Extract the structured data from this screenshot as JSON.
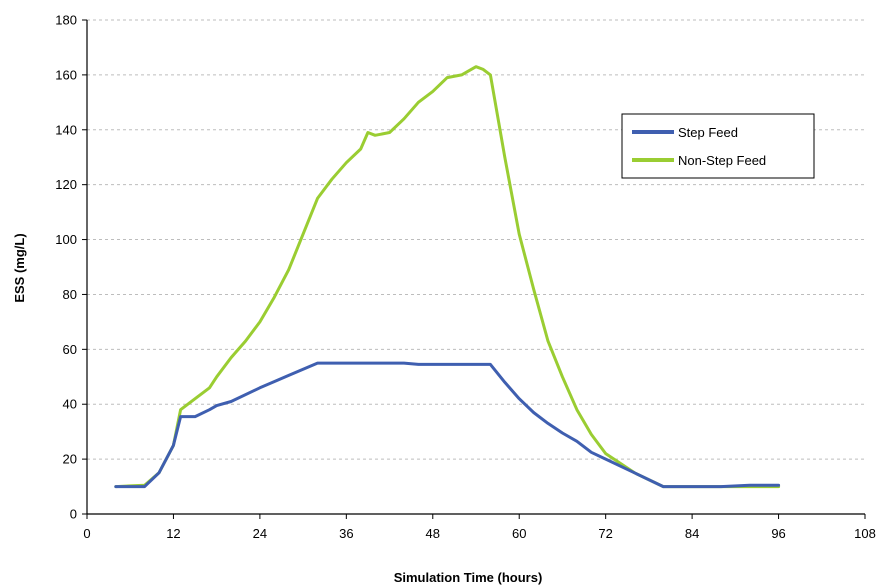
{
  "chart_data": {
    "type": "line",
    "title": "",
    "xlabel": "Simulation Time (hours)",
    "ylabel": "ESS (mg/L)",
    "xlim": [
      0,
      108
    ],
    "ylim": [
      0,
      180
    ],
    "xticks": [
      0,
      12,
      24,
      36,
      48,
      60,
      72,
      84,
      96,
      108
    ],
    "yticks": [
      0,
      20,
      40,
      60,
      80,
      100,
      120,
      140,
      160,
      180
    ],
    "grid": "horizontal-dashed",
    "legend_position": "top-right",
    "series": [
      {
        "name": "Step Feed",
        "color": "#3F5FB0",
        "x": [
          4,
          8,
          10,
          12,
          13,
          15,
          17,
          18,
          20,
          24,
          28,
          32,
          36,
          40,
          44,
          46,
          48,
          52,
          56,
          58,
          60,
          62,
          64,
          66,
          68,
          70,
          72,
          76,
          80,
          84,
          88,
          92,
          96
        ],
        "y": [
          10,
          10,
          15,
          25,
          35.5,
          35.5,
          38,
          39.5,
          41,
          46,
          50.5,
          55,
          55,
          55,
          55,
          54.5,
          54.5,
          54.5,
          54.5,
          48,
          42,
          37,
          33,
          29.5,
          26.5,
          22.5,
          20,
          15,
          10,
          10,
          10,
          10.5,
          10.5
        ]
      },
      {
        "name": "Non-Step Feed",
        "color": "#9ACD32",
        "x": [
          4,
          8,
          10,
          12,
          13,
          15,
          17,
          18,
          20,
          22,
          24,
          26,
          28,
          30,
          32,
          34,
          36,
          38,
          39,
          40,
          42,
          44,
          46,
          48,
          50,
          52,
          54,
          55,
          56,
          58,
          60,
          62,
          64,
          66,
          68,
          70,
          72,
          76,
          80,
          84,
          88,
          92,
          96
        ],
        "y": [
          10,
          10.5,
          15,
          25,
          38,
          42,
          46,
          50,
          57,
          63,
          70,
          79,
          89,
          102,
          115,
          122,
          128,
          133,
          139,
          138,
          139,
          144,
          150,
          154,
          159,
          160,
          163,
          162,
          160,
          130,
          102,
          82,
          63,
          50,
          38,
          29,
          22,
          15,
          10,
          10,
          10,
          10,
          10
        ]
      }
    ]
  }
}
